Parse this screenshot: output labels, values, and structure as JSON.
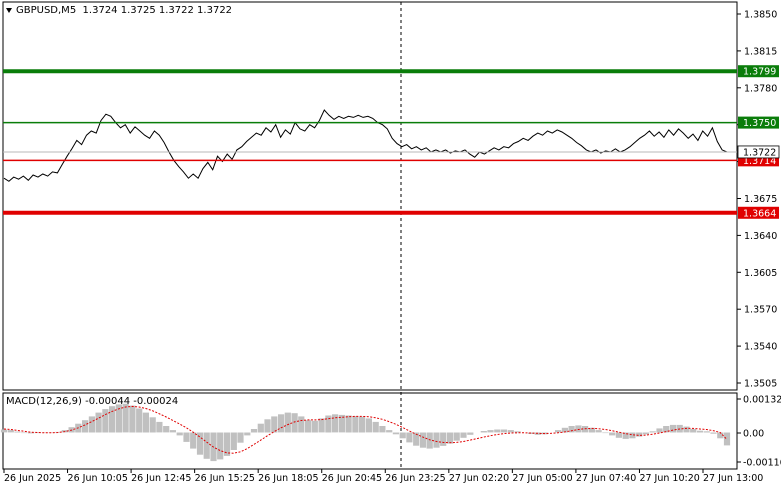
{
  "symbol_info": {
    "symbol": "GBPUSD,M5",
    "ohlc": "1.3724 1.3725 1.3722 1.3722"
  },
  "macd_info": {
    "label": "MACD(12,26,9) -0.00044 -0.00024"
  },
  "chart_data": [
    {
      "type": "line",
      "title": "GBPUSD,M5",
      "ylim": [
        1.3495,
        1.3865
      ],
      "y_ticks": [
        "1.3850",
        "1.3815",
        "1.3780",
        "1.3745",
        "1.3710",
        "1.3675",
        "1.3640",
        "1.3605",
        "1.3570",
        "1.3540",
        "1.3505"
      ],
      "x_ticks": [
        "26 Jun 2025",
        "26 Jun 10:05",
        "26 Jun 12:45",
        "26 Jun 15:25",
        "26 Jun 18:05",
        "26 Jun 20:45",
        "26 Jun 23:25",
        "27 Jun 02:20",
        "27 Jun 05:00",
        "27 Jun 07:40",
        "27 Jun 10:20",
        "27 Jun 13:00"
      ],
      "levels": [
        {
          "label": "1.3799",
          "value": 1.3799,
          "color": "#0a7d0a",
          "thick": true
        },
        {
          "label": "1.3750",
          "value": 1.375,
          "color": "#0a7d0a",
          "thick": false
        },
        {
          "label": "1.3714",
          "value": 1.3714,
          "color": "#e00000",
          "thick": false
        },
        {
          "label": "1.3664",
          "value": 1.3664,
          "color": "#e00000",
          "thick": true
        }
      ],
      "current_price": {
        "label": "1.3722",
        "value": 1.3722
      },
      "series": [
        {
          "values": [
            1.3697,
            1.3694,
            1.3698,
            1.3696,
            1.3699,
            1.3695,
            1.37,
            1.3698,
            1.3701,
            1.3699,
            1.3703,
            1.3702,
            1.371,
            1.3718,
            1.3725,
            1.3733,
            1.3729,
            1.3738,
            1.3742,
            1.374,
            1.3752,
            1.3758,
            1.3756,
            1.375,
            1.3745,
            1.3748,
            1.374,
            1.3746,
            1.3742,
            1.3738,
            1.3735,
            1.3742,
            1.3738,
            1.3731,
            1.3722,
            1.3714,
            1.3708,
            1.3703,
            1.3697,
            1.3701,
            1.3697,
            1.3706,
            1.3712,
            1.3705,
            1.3718,
            1.3713,
            1.372,
            1.3715,
            1.3724,
            1.3727,
            1.3732,
            1.3736,
            1.374,
            1.3738,
            1.3745,
            1.3741,
            1.3748,
            1.3736,
            1.3743,
            1.3739,
            1.375,
            1.3744,
            1.3742,
            1.3748,
            1.3745,
            1.3752,
            1.3762,
            1.3757,
            1.3753,
            1.3756,
            1.3754,
            1.3756,
            1.3755,
            1.3757,
            1.3755,
            1.3756,
            1.3754,
            1.375,
            1.3748,
            1.3744,
            1.3735,
            1.373,
            1.3727,
            1.3729,
            1.3725,
            1.3727,
            1.3724,
            1.3726,
            1.3722,
            1.3724,
            1.3722,
            1.3724,
            1.3721,
            1.3723,
            1.3722,
            1.3724,
            1.372,
            1.3717,
            1.3722,
            1.372,
            1.3723,
            1.3726,
            1.3724,
            1.3727,
            1.3726,
            1.373,
            1.3732,
            1.3735,
            1.3733,
            1.3737,
            1.374,
            1.3738,
            1.3742,
            1.374,
            1.3743,
            1.3741,
            1.3738,
            1.3735,
            1.3731,
            1.3728,
            1.3724,
            1.3722,
            1.3724,
            1.3721,
            1.3723,
            1.3722,
            1.3725,
            1.3722,
            1.3724,
            1.3727,
            1.3731,
            1.3735,
            1.3738,
            1.3742,
            1.3737,
            1.3741,
            1.3736,
            1.3743,
            1.3738,
            1.3744,
            1.374,
            1.3735,
            1.3739,
            1.3733,
            1.3742,
            1.3737,
            1.3745,
            1.3732,
            1.3724,
            1.3722
          ]
        }
      ]
    },
    {
      "type": "bar",
      "title": "MACD(12,26,9) -0.00044 -0.00024",
      "ylim": [
        -0.00125,
        0.00135
      ],
      "y_ticks": [
        "0.00132",
        "0.00",
        "-0.00116"
      ],
      "series": [
        {
          "name": "MACD",
          "values": [
            0.0001,
            8e-05,
            3e-05,
            -2e-05,
            -3e-05,
            -2e-05,
            -1e-05,
            -1e-05,
            2e-05,
            8e-05,
            0.00018,
            0.0003,
            0.00042,
            0.00055,
            0.00068,
            0.0008,
            0.0009,
            0.00096,
            0.00098,
            0.00092,
            0.00082,
            0.00068,
            0.00052,
            0.00036,
            0.00022,
            8e-05,
            -0.0001,
            -0.00032,
            -0.00055,
            -0.00076,
            -0.0009,
            -0.00098,
            -0.00092,
            -0.0008,
            -0.0006,
            -0.00035,
            -0.0001,
            0.00012,
            0.0003,
            0.00045,
            0.00055,
            0.00062,
            0.00068,
            0.00066,
            0.00055,
            0.00042,
            0.0004,
            0.00048,
            0.00058,
            0.00062,
            0.0006,
            0.00058,
            0.00056,
            0.00054,
            0.00048,
            0.00036,
            0.00022,
            8e-05,
            -6e-05,
            -0.0002,
            -0.00034,
            -0.00045,
            -0.00052,
            -0.00055,
            -0.00052,
            -0.00046,
            -0.00038,
            -0.00028,
            -0.00018,
            -8e-05,
            0.0,
            5e-05,
            8e-05,
            0.0001,
            0.0001,
            8e-05,
            4e-05,
            0.0,
            -5e-05,
            -8e-05,
            -6e-05,
            0.0,
            8e-05,
            0.00016,
            0.00022,
            0.00024,
            0.00022,
            0.00016,
            8e-05,
            -2e-05,
            -0.0001,
            -0.00018,
            -0.00022,
            -0.0002,
            -0.00014,
            -6e-05,
            4e-05,
            0.00014,
            0.00022,
            0.00026,
            0.00026,
            0.0002,
            0.00012,
            6e-05,
            4e-05,
            -4e-05,
            -0.0002,
            -0.00044
          ]
        },
        {
          "name": "Signal",
          "values": [
            0.00012,
            0.0001,
            7e-05,
            4e-05,
            1e-05,
            0.0,
            -1e-05,
            -1e-05,
            0.0,
            3e-05,
            8e-05,
            0.00016,
            0.00026,
            0.00037,
            0.00049,
            0.00061,
            0.00072,
            0.00081,
            0.00087,
            0.00089,
            0.00087,
            0.00082,
            0.00074,
            0.00064,
            0.00053,
            0.00041,
            0.00029,
            0.00016,
            1e-05,
            -0.00016,
            -0.00033,
            -0.0005,
            -0.00062,
            -0.0007,
            -0.00071,
            -0.00066,
            -0.00055,
            -0.00041,
            -0.00026,
            -0.00011,
            3e-05,
            0.00016,
            0.00027,
            0.00036,
            0.00041,
            0.00043,
            0.00043,
            0.00044,
            0.00047,
            0.0005,
            0.00052,
            0.00054,
            0.00055,
            0.00055,
            0.00054,
            0.0005,
            0.00045,
            0.00037,
            0.00028,
            0.00017,
            5e-05,
            -6e-05,
            -0.00016,
            -0.00025,
            -0.00031,
            -0.00034,
            -0.00035,
            -0.00034,
            -0.00031,
            -0.00026,
            -0.00021,
            -0.00016,
            -0.00011,
            -7e-05,
            -4e-05,
            -2e-05,
            -1e-05,
            -1e-05,
            -2e-05,
            -3e-05,
            -4e-05,
            -3e-05,
            -1e-05,
            2e-05,
            6e-05,
            0.0001,
            0.00013,
            0.00014,
            0.00013,
            0.0001,
            6e-05,
            1e-05,
            -4e-05,
            -8e-05,
            -0.0001,
            -9e-05,
            -6e-05,
            -2e-05,
            3e-05,
            8e-05,
            0.00012,
            0.00014,
            0.00014,
            0.00012,
            0.0001,
            6e-05,
            0.0,
            -0.00024
          ]
        }
      ]
    }
  ]
}
